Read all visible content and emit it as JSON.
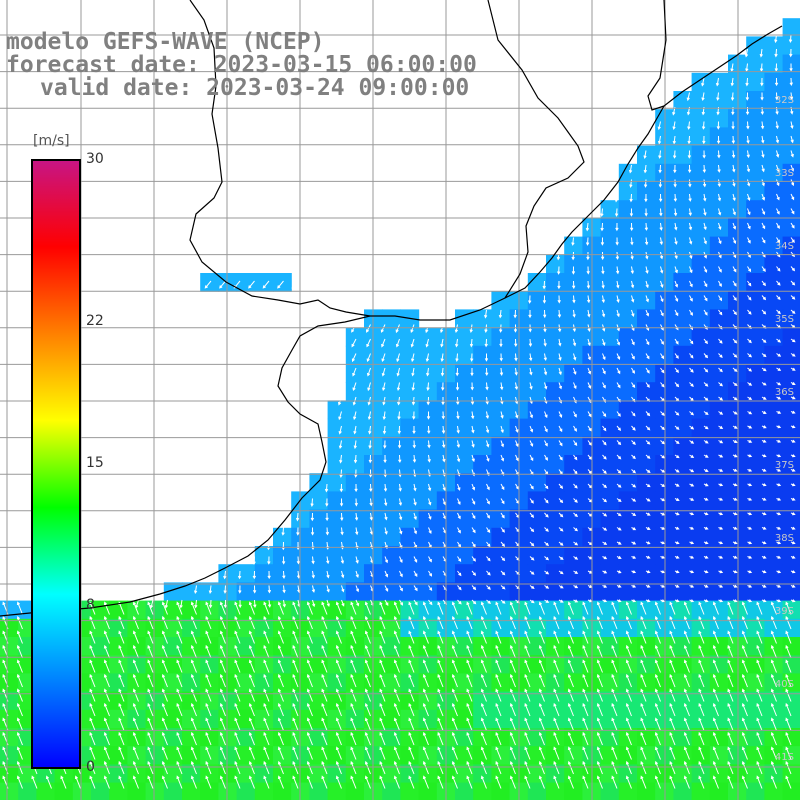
{
  "title": {
    "line1": "modelo GEFS-WAVE (NCEP)",
    "line2": "forecast date: 2023-03-15 06:00:00",
    "line3": "valid date: 2023-03-24 09:00:00"
  },
  "colorbar": {
    "unit": "[m/s]",
    "ticks": [
      {
        "label": "30",
        "value": 30
      },
      {
        "label": "22",
        "value": 22
      },
      {
        "label": "15",
        "value": 15
      },
      {
        "label": "8",
        "value": 8
      },
      {
        "label": "0",
        "value": 0
      }
    ],
    "colors": [
      "#0000ff",
      "#0080ff",
      "#00ffff",
      "#00ff00",
      "#ffff00",
      "#ff8000",
      "#ff0000",
      "#c71585"
    ]
  },
  "lat_labels": [
    "32S",
    "33S",
    "34S",
    "35S",
    "36S",
    "37S",
    "38S",
    "39S",
    "40S",
    "41S"
  ],
  "colors": {
    "land": "#ffffff",
    "grid": "#999999",
    "coast": "#000000",
    "south_wind": "#22ee22",
    "near_coast_wind": "#1ab4ff",
    "offshore_wind": "#0a3cf0"
  }
}
